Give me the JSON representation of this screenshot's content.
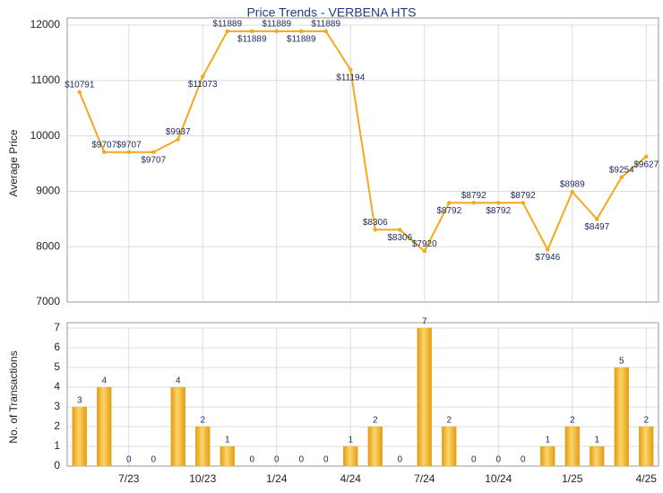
{
  "chart_data": [
    {
      "type": "line",
      "title": "Price Trends - VERBENA HTS",
      "y_label": "Average Price",
      "series": [
        {
          "name": "Average Price",
          "color": "#f5a81c",
          "values": [
            10791,
            9707,
            9707,
            9707,
            9937,
            11073,
            11889,
            11889,
            11889,
            11889,
            11889,
            11194,
            8306,
            8306,
            7920,
            8792,
            8792,
            8792,
            8792,
            7946,
            8989,
            8497,
            9254,
            9627
          ],
          "value_labels": [
            "$10791",
            "$9707",
            "$9707",
            "$9707",
            "$9937",
            "$11073",
            "$11889",
            "$11889",
            "$11889",
            "$11889",
            "$11889",
            "$11194",
            "$8306",
            "$8306",
            "$7920",
            "$8792",
            "$8792",
            "$8792",
            "$8792",
            "$7946",
            "$8989",
            "$8497",
            "$9254",
            "$9627"
          ]
        }
      ],
      "ylim": [
        7000,
        12000
      ],
      "yticks": [
        7000,
        8000,
        9000,
        10000,
        11000,
        12000
      ],
      "grid": true
    },
    {
      "type": "bar",
      "y_label": "No. of Transactions",
      "categories": [
        null,
        null,
        "7/23",
        null,
        null,
        "10/23",
        null,
        null,
        "1/24",
        null,
        null,
        "4/24",
        null,
        null,
        "7/24",
        null,
        null,
        "10/24",
        null,
        null,
        "1/25",
        null,
        null,
        "4/25"
      ],
      "values": [
        3,
        4,
        0,
        0,
        4,
        2,
        1,
        0,
        0,
        0,
        0,
        1,
        2,
        0,
        7,
        2,
        0,
        0,
        0,
        1,
        2,
        1,
        5,
        2
      ],
      "color": "#f0b030",
      "ylim": [
        0,
        7
      ],
      "yticks": [
        0,
        1,
        2,
        3,
        4,
        5,
        6,
        7
      ],
      "grid": true
    }
  ]
}
